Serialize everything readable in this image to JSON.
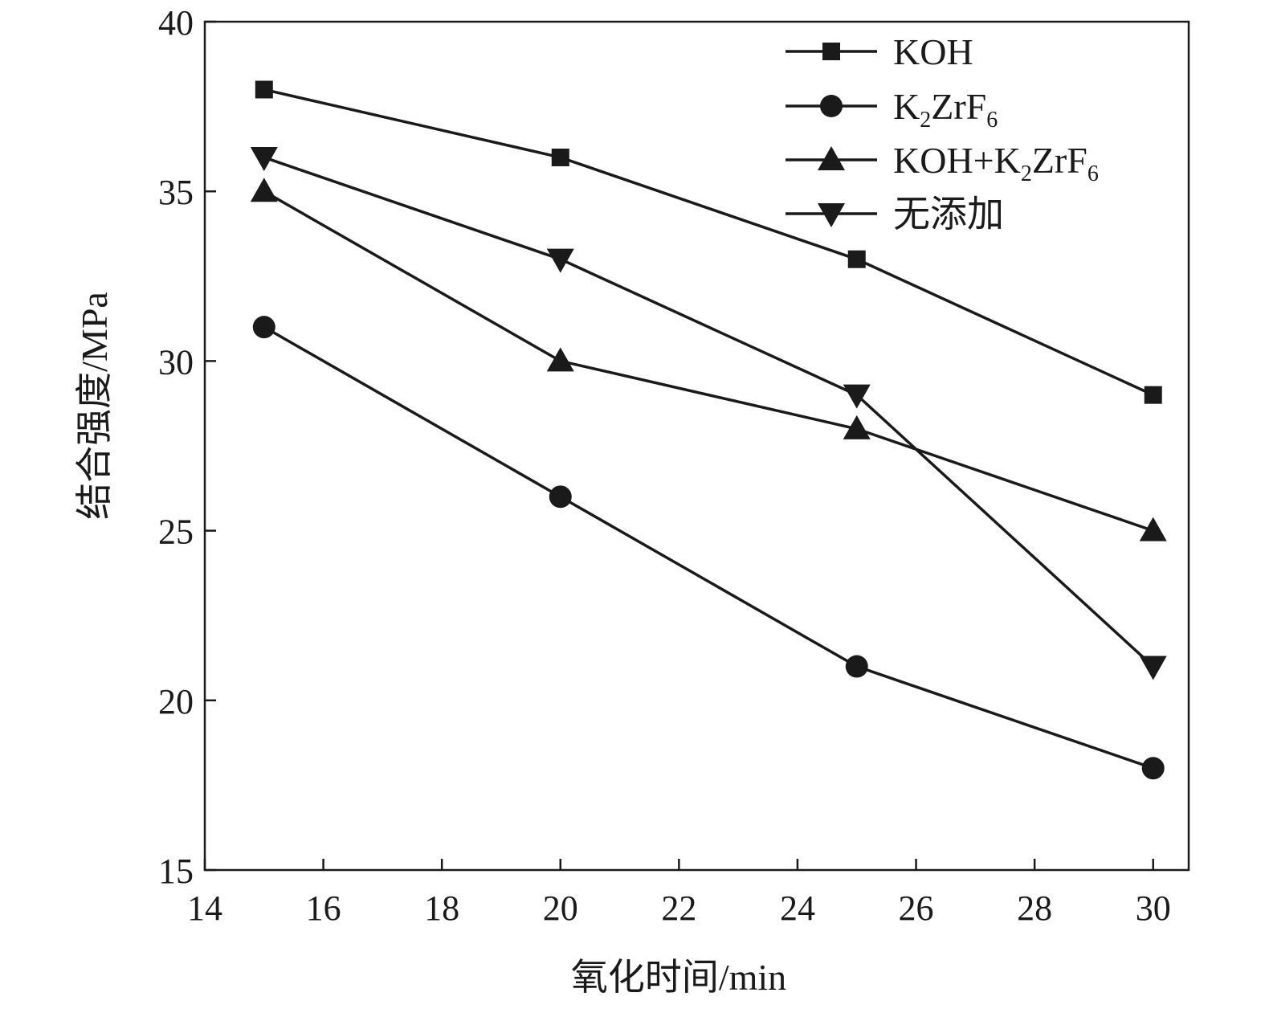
{
  "chart_data": {
    "type": "line",
    "xlabel": "氧化时间/min",
    "ylabel": "结合强度/MPa",
    "xlim": [
      14,
      30.6
    ],
    "ylim": [
      15,
      40
    ],
    "xticks": [
      14,
      16,
      18,
      20,
      22,
      24,
      26,
      28,
      30
    ],
    "yticks": [
      15,
      20,
      25,
      30,
      35,
      40
    ],
    "legend_position": "top-right",
    "grid": false,
    "series": [
      {
        "name": "KOH",
        "marker": "square",
        "x": [
          15,
          20,
          25,
          30
        ],
        "values": [
          38,
          36,
          33,
          29
        ]
      },
      {
        "name": "K2ZrF6",
        "marker": "circle",
        "x": [
          15,
          20,
          25,
          30
        ],
        "values": [
          31,
          26,
          21,
          18
        ]
      },
      {
        "name": "KOH+K2ZrF6",
        "marker": "triangle-up",
        "x": [
          15,
          20,
          25,
          30
        ],
        "values": [
          35,
          30,
          28,
          25
        ]
      },
      {
        "name": "无添加",
        "marker": "triangle-down",
        "x": [
          15,
          20,
          25,
          30
        ],
        "values": [
          36,
          33,
          29,
          21
        ]
      }
    ],
    "legend": [
      {
        "text": "KOH",
        "sub": "",
        "text2": "",
        "sub2": ""
      },
      {
        "text": "K",
        "sub": "2",
        "text2": "ZrF",
        "sub2": "6"
      },
      {
        "text": "KOH+K",
        "sub": "2",
        "text2": "ZrF",
        "sub2": "6"
      },
      {
        "text": "无添加",
        "sub": "",
        "text2": "",
        "sub2": ""
      }
    ],
    "line_color": "#1a1a1a"
  }
}
